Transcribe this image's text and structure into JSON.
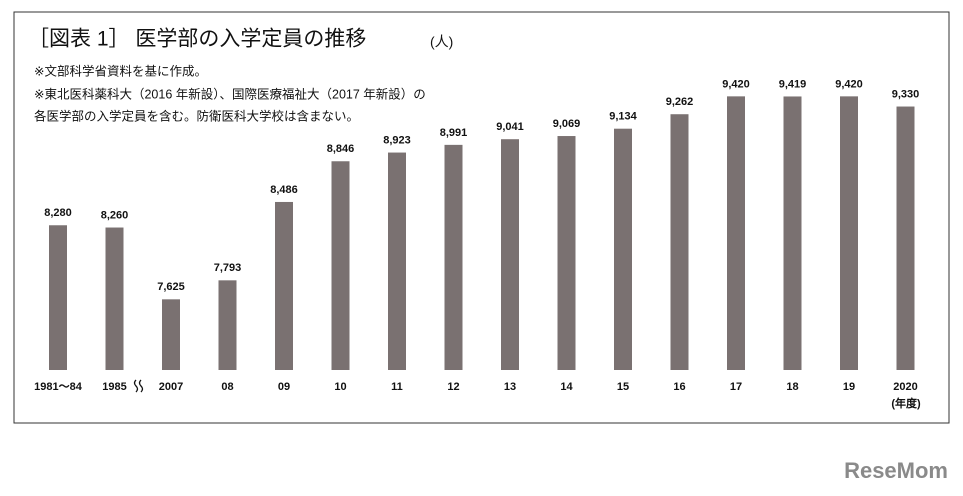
{
  "chart_data": {
    "type": "bar",
    "title": "［図表 1］ 医学部の入学定員の推移",
    "unit": "(人)",
    "notes": [
      "※文部科学省資料を基に作成。",
      "※東北医科薬科大（2016 年新設）、国際医療福祉大（2017 年新設）の",
      "各医学部の入学定員を含む。防衛医科大学校は含まない。"
    ],
    "x_label": "(年度)",
    "categories": [
      "1981〜84",
      "1985",
      "2007",
      "08",
      "09",
      "10",
      "11",
      "12",
      "13",
      "14",
      "15",
      "16",
      "17",
      "18",
      "19",
      "2020"
    ],
    "values": [
      8280,
      8260,
      7625,
      7793,
      8486,
      8846,
      8923,
      8991,
      9041,
      9069,
      9134,
      9262,
      9420,
      9419,
      9420,
      9330
    ],
    "value_labels": [
      "8,280",
      "8,260",
      "7,625",
      "7,793",
      "8,486",
      "8,846",
      "8,923",
      "8,991",
      "9,041",
      "9,069",
      "9,134",
      "9,262",
      "9,420",
      "9,419",
      "9,420",
      "9,330"
    ],
    "color": "#7a7171",
    "ylim": [
      7000,
      9600
    ]
  },
  "watermark": "ReseMom"
}
